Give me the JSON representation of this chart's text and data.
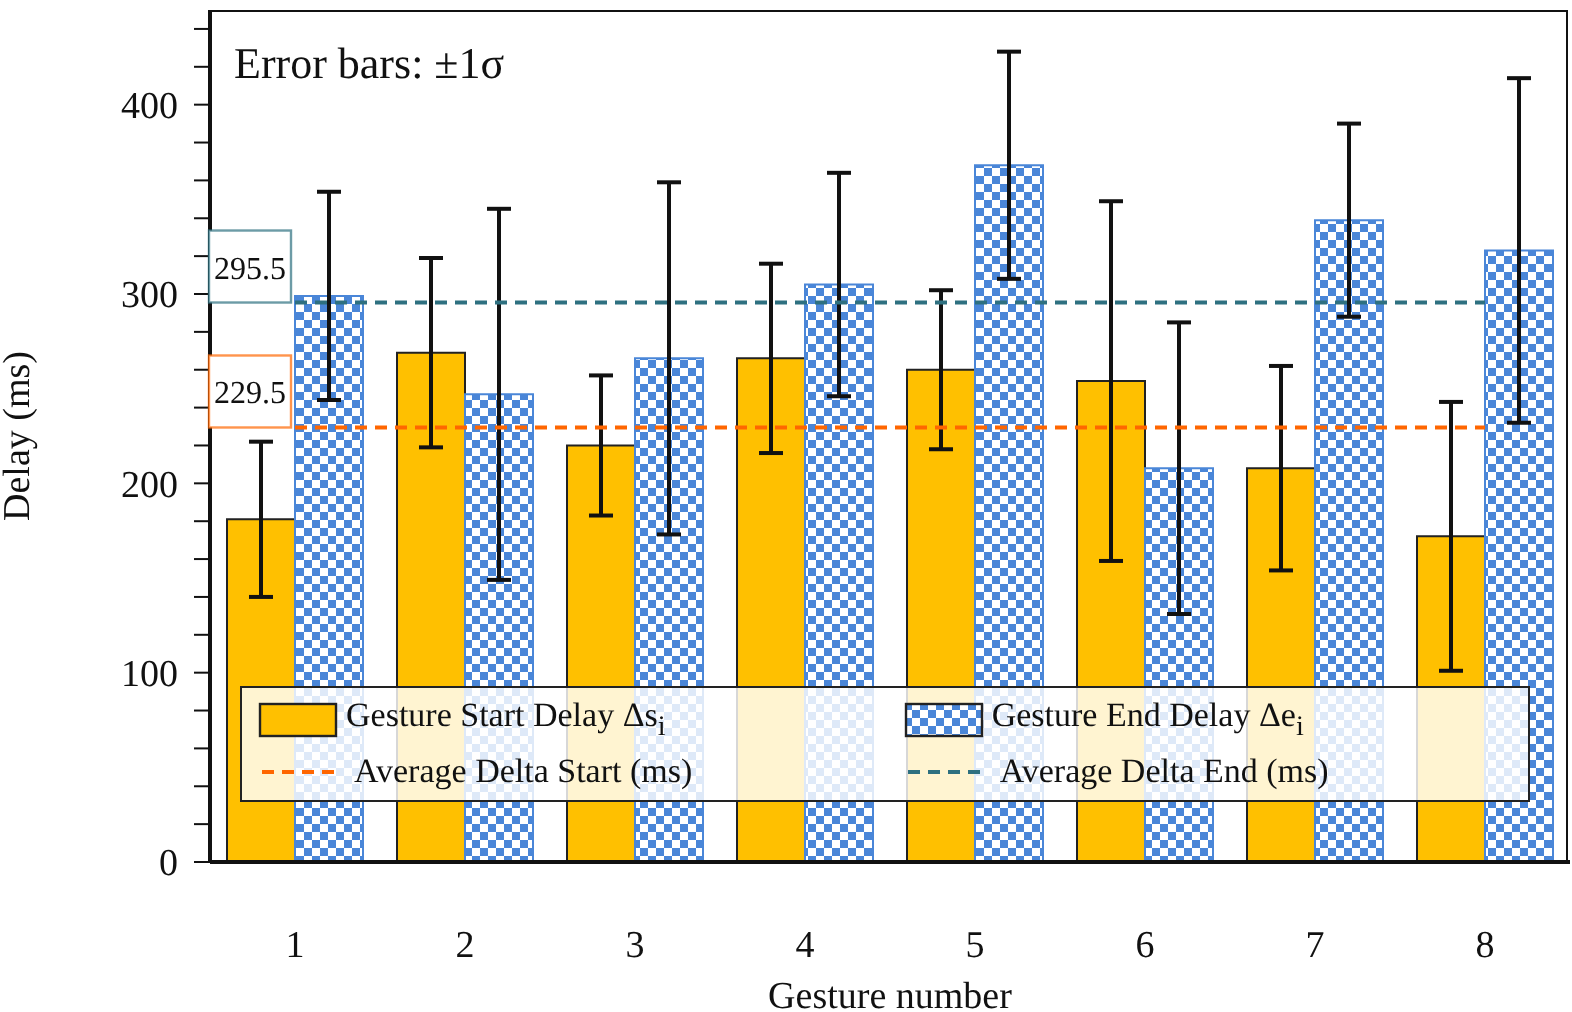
{
  "chart_data": {
    "type": "bar",
    "xlabel": "Gesture number",
    "ylabel": "Delay (ms)",
    "annotations": [
      "Error bars: ±1σ"
    ],
    "categories": [
      "1",
      "2",
      "3",
      "4",
      "5",
      "6",
      "7",
      "8"
    ],
    "series": [
      {
        "name": "Gesture Start Delay Δs$_{i}$",
        "color": "#ffc000",
        "values": [
          181,
          269,
          220,
          266,
          260,
          254,
          208,
          172
        ],
        "errors": [
          41,
          50,
          37,
          50,
          42,
          95,
          54,
          71
        ]
      },
      {
        "name": "Gesture End Delay Δe$_{i}$",
        "color": "#4a86d8",
        "values": [
          299,
          247,
          266,
          305,
          368,
          208,
          339,
          323
        ],
        "errors": [
          55,
          98,
          93,
          59,
          60,
          77,
          51,
          91
        ]
      },
      {
        "type": "line",
        "name": "Average Delta Start (ms)",
        "color": "#ff6600",
        "line_style": "dashed",
        "marker": "none",
        "values": [
          229.5,
          229.5,
          229.5,
          229.5,
          229.5,
          229.5,
          229.5,
          229.5
        ],
        "value_labels": [
          "229.5",
          null,
          null,
          null,
          null,
          null,
          null,
          null
        ]
      },
      {
        "type": "line",
        "name": "Average Delta End (ms)",
        "color": "#2e7080",
        "line_style": "dashed",
        "marker": "none",
        "values": [
          295.5,
          295.5,
          295.5,
          295.5,
          295.5,
          295.5,
          295.5,
          295.5
        ],
        "value_labels": [
          "295.5",
          null,
          null,
          null,
          null,
          null,
          null,
          null
        ]
      }
    ],
    "ylim": [
      0,
      450
    ],
    "yticks": [
      0,
      {
        "value": 20,
        "label": null
      },
      {
        "value": 40,
        "label": null
      },
      {
        "value": 60,
        "label": null
      },
      {
        "value": 80,
        "label": null
      },
      100,
      {
        "value": 120,
        "label": null
      },
      {
        "value": 140,
        "label": null
      },
      {
        "value": 160,
        "label": null
      },
      {
        "value": 180,
        "label": null
      },
      200,
      {
        "value": 220,
        "label": null
      },
      {
        "value": 240,
        "label": null
      },
      {
        "value": 260,
        "label": null
      },
      {
        "value": 280,
        "label": null
      },
      300,
      {
        "value": 320,
        "label": null
      },
      {
        "value": 340,
        "label": null
      },
      {
        "value": 360,
        "label": null
      },
      {
        "value": 380,
        "label": null
      },
      400,
      {
        "value": 420,
        "label": null
      },
      {
        "value": 440,
        "label": null
      }
    ],
    "grid": false,
    "legend": "bottom"
  }
}
